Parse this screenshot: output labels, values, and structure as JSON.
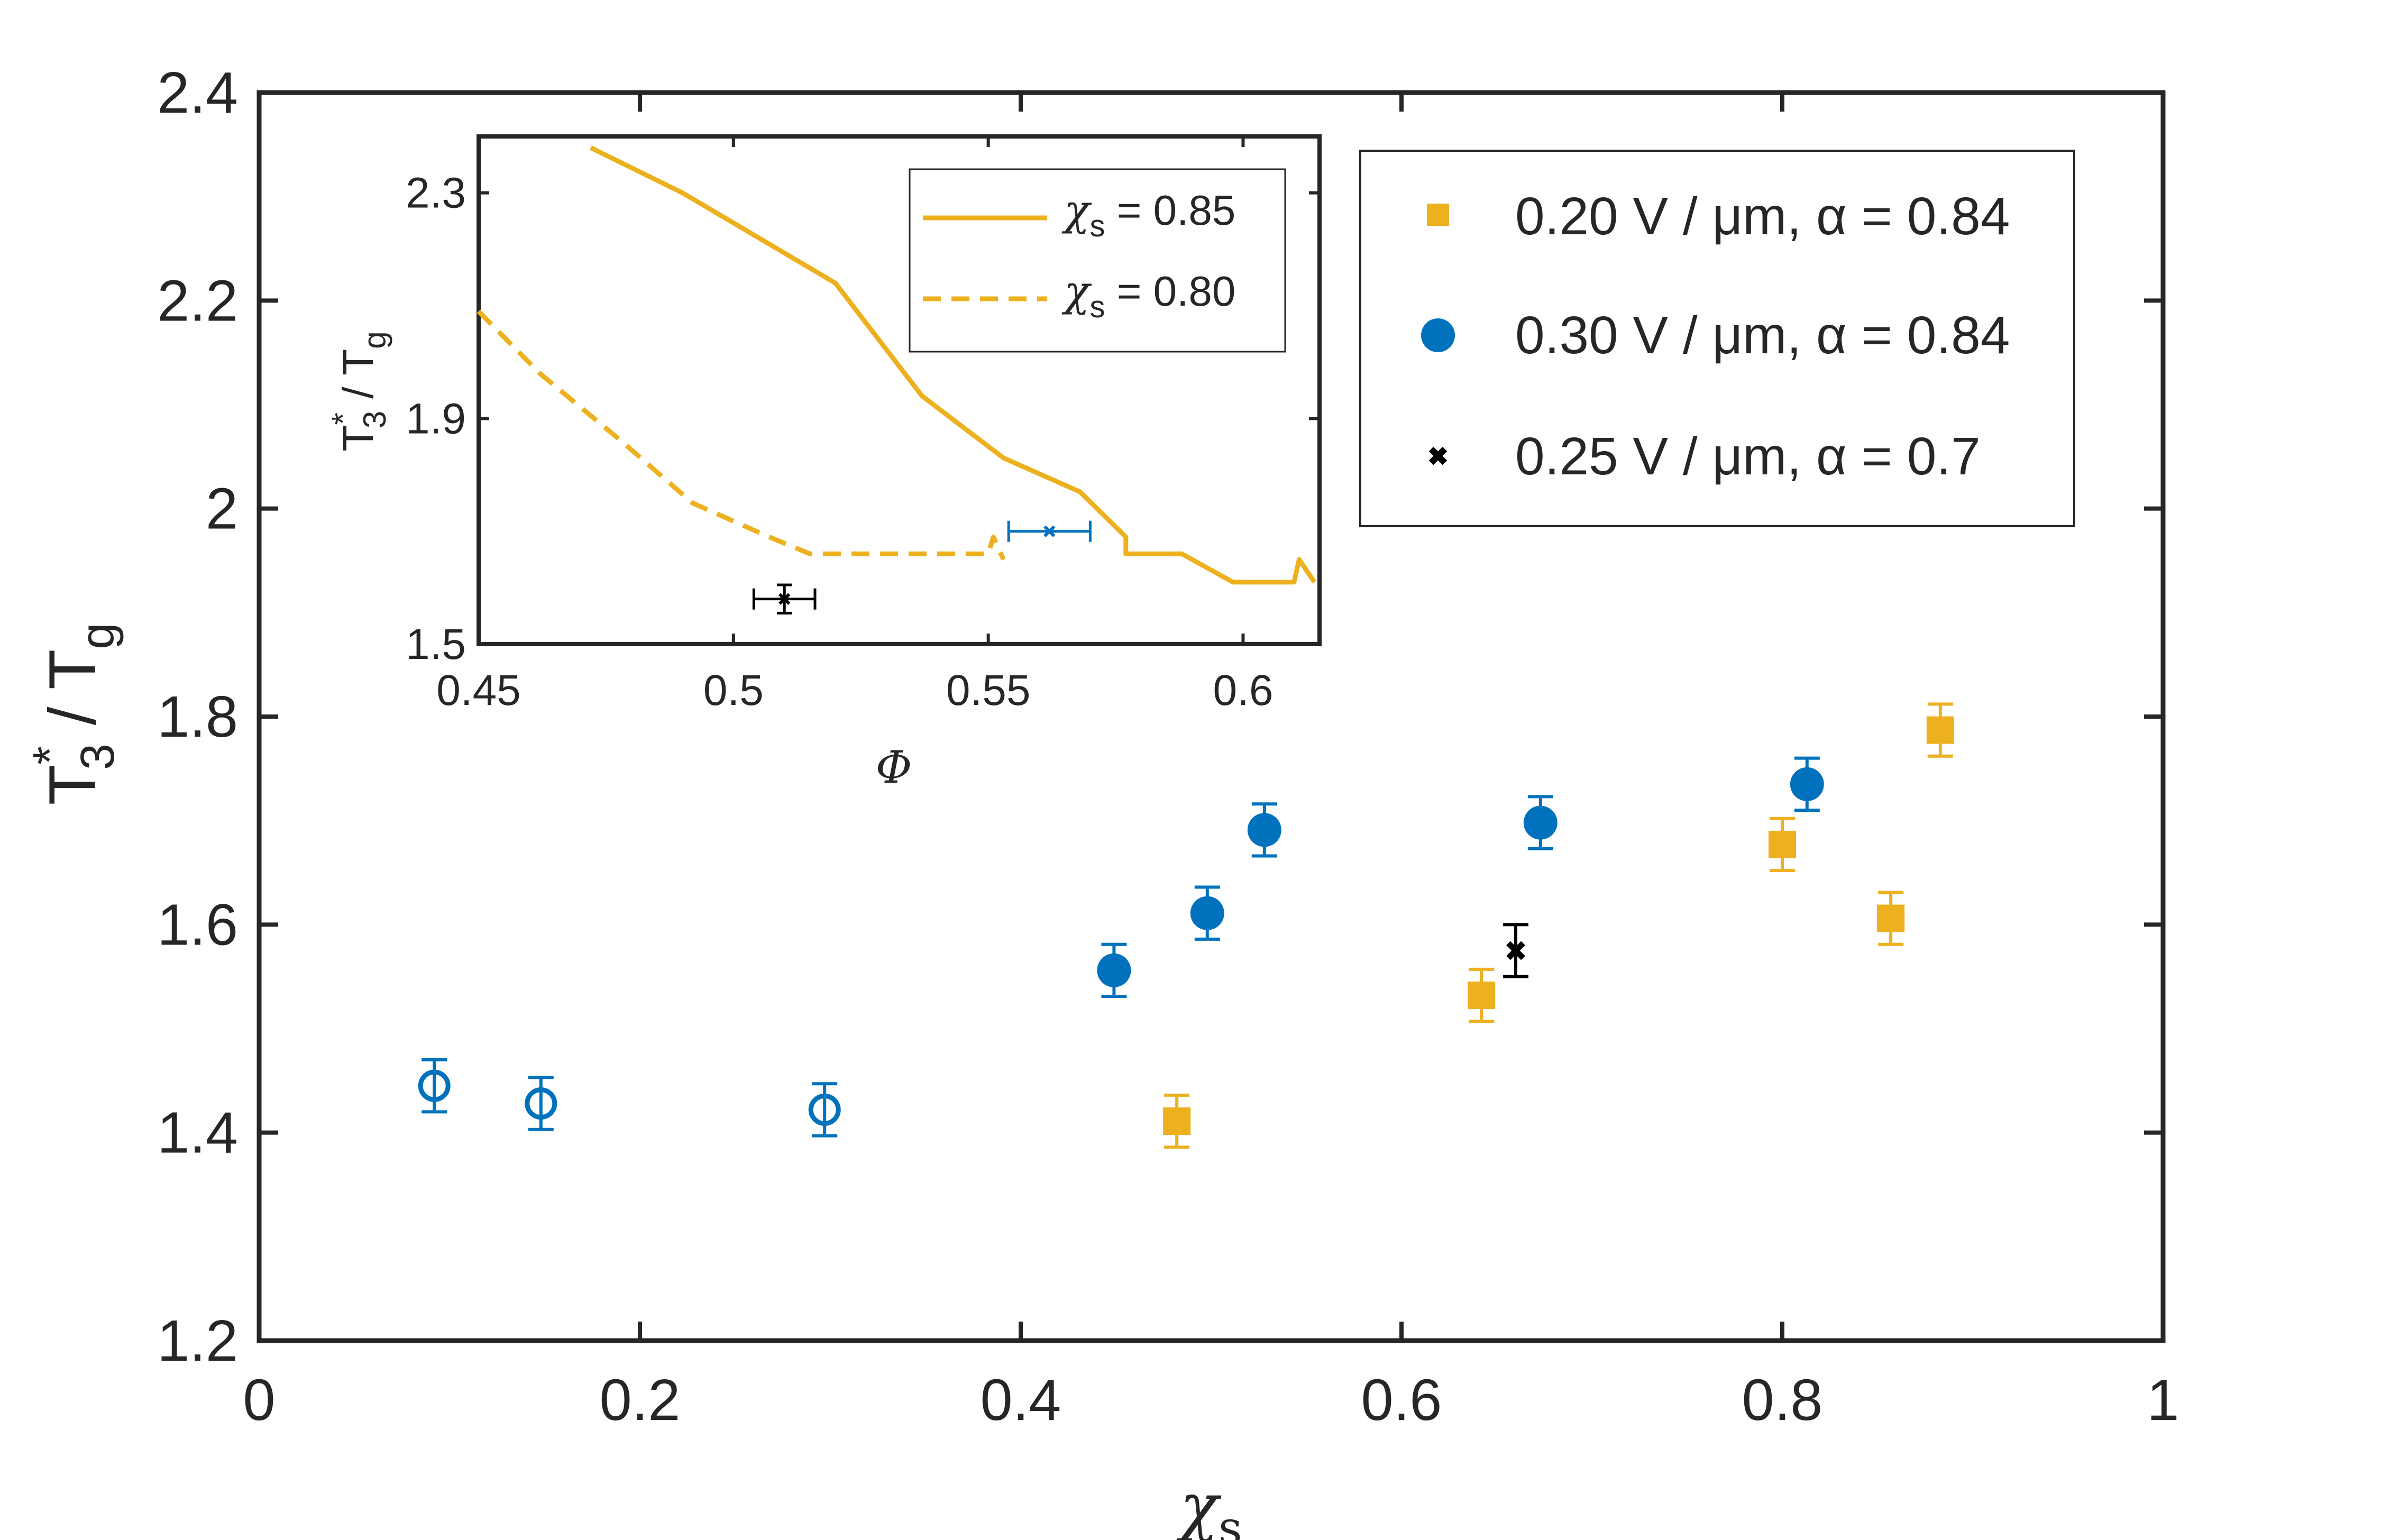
{
  "chart_data": [
    {
      "type": "scatter",
      "title": "",
      "xlabel": "χs",
      "ylabel": "T3* / Tg",
      "xlim": [
        0,
        1
      ],
      "ylim": [
        1.2,
        2.4
      ],
      "xticks": [
        0,
        0.2,
        0.4,
        0.6,
        0.8,
        1
      ],
      "xtick_labels": [
        "0",
        "0.2",
        "0.4",
        "0.6",
        "0.8",
        "1"
      ],
      "yticks": [
        1.2,
        1.4,
        1.6,
        1.8,
        2.0,
        2.2,
        2.4
      ],
      "ytick_labels": [
        "1.2",
        "1.4",
        "1.6",
        "1.8",
        "2",
        "2.2",
        "2.4"
      ],
      "grid": false,
      "legend_position": "top-right",
      "series": [
        {
          "name": "0.20 V / μm, α = 0.84",
          "marker": "square",
          "color": "#EDB120",
          "points": [
            {
              "x": 0.482,
              "y": 1.411,
              "err": 0.025
            },
            {
              "x": 0.642,
              "y": 1.532,
              "err": 0.025
            },
            {
              "x": 0.8,
              "y": 1.677,
              "err": 0.025
            },
            {
              "x": 0.857,
              "y": 1.606,
              "err": 0.025
            },
            {
              "x": 0.883,
              "y": 1.787,
              "err": 0.025
            }
          ]
        },
        {
          "name": "0.30 V / μm, α = 0.84",
          "marker": "circle",
          "color": "#0072BD",
          "points": [
            {
              "x": 0.449,
              "y": 1.556,
              "err": 0.025,
              "filled": true
            },
            {
              "x": 0.498,
              "y": 1.611,
              "err": 0.025,
              "filled": true
            },
            {
              "x": 0.528,
              "y": 1.691,
              "err": 0.025,
              "filled": true
            },
            {
              "x": 0.673,
              "y": 1.698,
              "err": 0.025,
              "filled": true
            },
            {
              "x": 0.813,
              "y": 1.735,
              "err": 0.025,
              "filled": true
            },
            {
              "x": 0.092,
              "y": 1.445,
              "err": 0.025,
              "filled": false
            },
            {
              "x": 0.148,
              "y": 1.428,
              "err": 0.025,
              "filled": false
            },
            {
              "x": 0.297,
              "y": 1.422,
              "err": 0.025,
              "filled": false
            }
          ]
        },
        {
          "name": "0.25 V / μm, α = 0.7",
          "marker": "x",
          "color": "#000000",
          "points": [
            {
              "x": 0.66,
              "y": 1.575,
              "err": 0.025
            }
          ]
        }
      ]
    },
    {
      "type": "line",
      "title": "",
      "xlabel": "Φ",
      "ylabel": "T3* / Tg",
      "xlim": [
        0.45,
        0.615
      ],
      "ylim": [
        1.5,
        2.4
      ],
      "xticks": [
        0.45,
        0.5,
        0.55,
        0.6
      ],
      "xtick_labels": [
        "0.45",
        "0.5",
        "0.55",
        "0.6"
      ],
      "yticks": [
        1.5,
        1.9,
        2.3
      ],
      "ytick_labels": [
        "1.5",
        "1.9",
        "2.3"
      ],
      "legend_position": "top-right",
      "series": [
        {
          "name": "χs = 0.85",
          "style": "solid",
          "color": "#EDB120",
          "x": [
            0.472,
            0.49,
            0.505,
            0.52,
            0.537,
            0.553,
            0.568,
            0.577,
            0.577,
            0.588,
            0.598,
            0.61,
            0.611,
            0.614
          ],
          "y": [
            2.38,
            2.3,
            2.22,
            2.14,
            1.94,
            1.83,
            1.77,
            1.69,
            1.66,
            1.66,
            1.61,
            1.61,
            1.65,
            1.61
          ]
        },
        {
          "name": "χs = 0.80",
          "style": "dashed",
          "color": "#EDB120",
          "x": [
            0.45,
            0.462,
            0.478,
            0.492,
            0.507,
            0.515,
            0.53,
            0.545,
            0.55,
            0.551,
            0.553
          ],
          "y": [
            2.09,
            1.98,
            1.86,
            1.75,
            1.69,
            1.66,
            1.66,
            1.66,
            1.66,
            1.69,
            1.65
          ]
        },
        {
          "name": "blue point",
          "style": "point",
          "color": "#0072BD",
          "points": [
            {
              "x": 0.562,
              "y": 1.7,
              "xerr": 0.008
            }
          ]
        },
        {
          "name": "black point",
          "style": "point",
          "color": "#000000",
          "points": [
            {
              "x": 0.51,
              "y": 1.58,
              "xerr": 0.006,
              "yerr": 0.025
            }
          ]
        }
      ]
    }
  ]
}
